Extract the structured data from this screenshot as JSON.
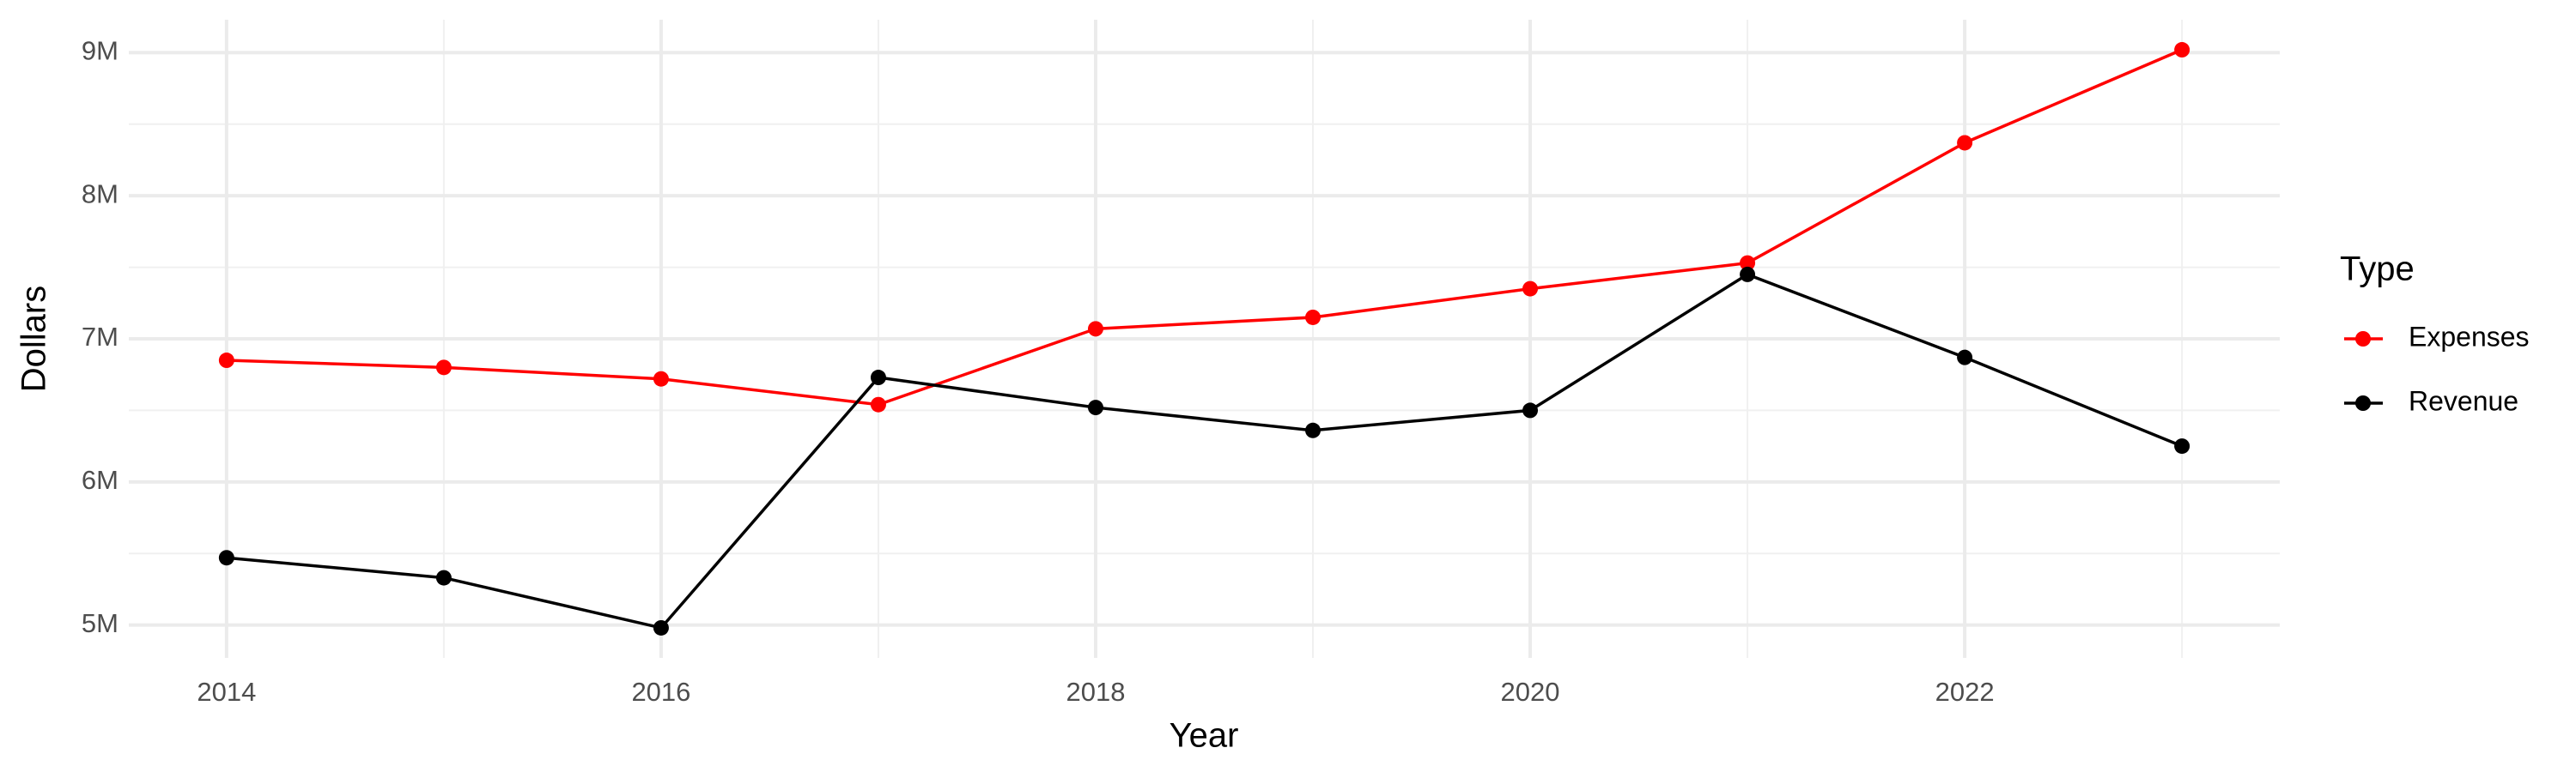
{
  "chart_data": {
    "type": "line",
    "x_label": "Year",
    "y_label": "Dollars",
    "legend_title": "Type",
    "x": [
      2014,
      2015,
      2016,
      2017,
      2018,
      2019,
      2020,
      2021,
      2022,
      2023
    ],
    "series": [
      {
        "name": "Expenses",
        "color": "#ff0000",
        "values": [
          6850000,
          6800000,
          6720000,
          6540000,
          7070000,
          7150000,
          7350000,
          7530000,
          8370000,
          9020000
        ]
      },
      {
        "name": "Revenue",
        "color": "#000000",
        "values": [
          5470000,
          5330000,
          4980000,
          6730000,
          6520000,
          6360000,
          6500000,
          7450000,
          6870000,
          6250000
        ]
      }
    ],
    "xlim": [
      2013.55,
      2023.45
    ],
    "xticks": [
      2014,
      2016,
      2018,
      2020,
      2022
    ],
    "ylim": [
      4770000,
      9230000
    ],
    "yticks": [
      {
        "value": 5000000,
        "label": "5M"
      },
      {
        "value": 6000000,
        "label": "6M"
      },
      {
        "value": 7000000,
        "label": "7M"
      },
      {
        "value": 8000000,
        "label": "8M"
      },
      {
        "value": 9000000,
        "label": "9M"
      }
    ],
    "grid": true,
    "legend": "right"
  }
}
